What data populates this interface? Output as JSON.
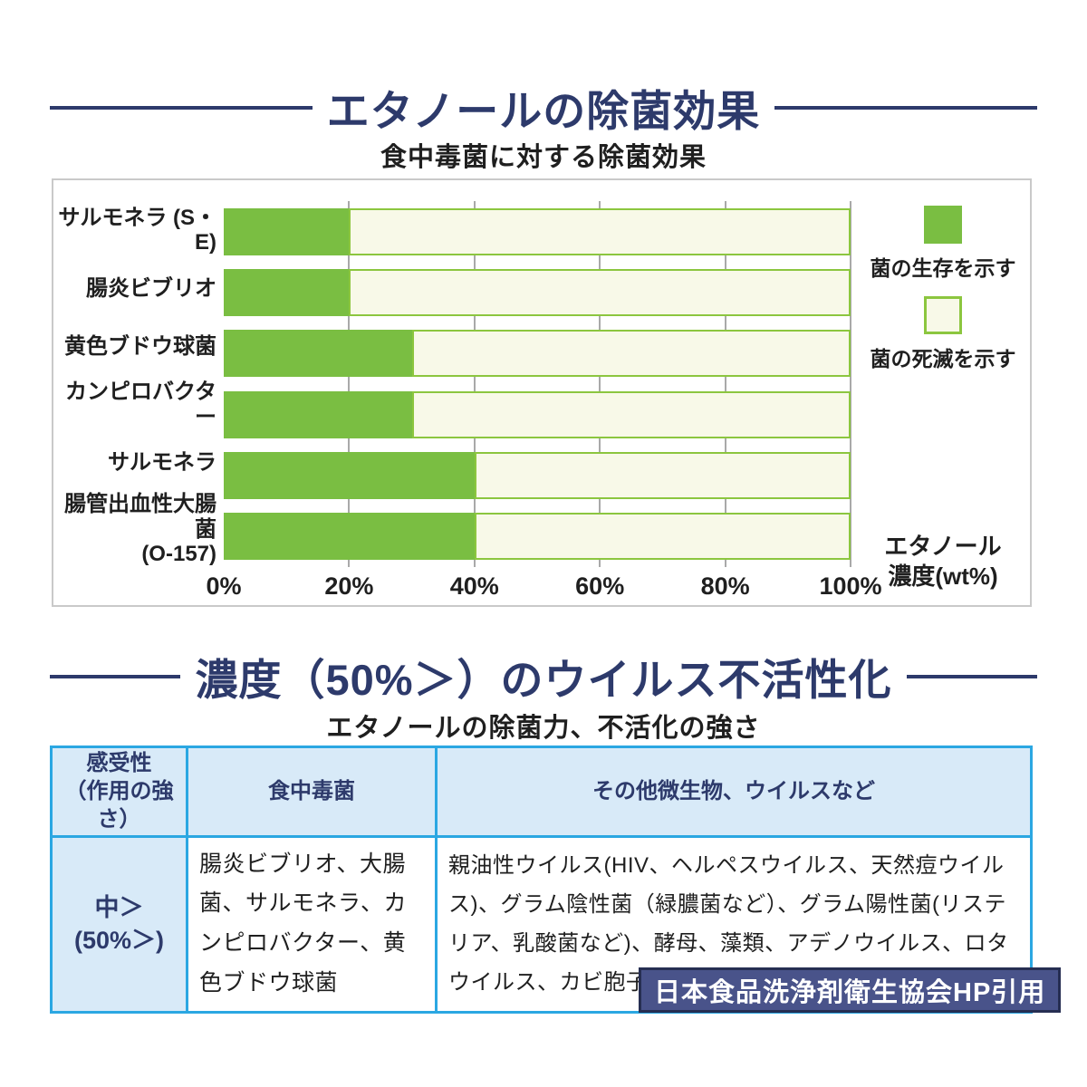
{
  "page": {
    "title1": "エタノールの除菌効果",
    "subtitle1": "食中毒菌に対する除菌効果",
    "title2": "濃度（50%＞）のウイルス不活性化",
    "subtitle2": "エタノールの除菌力、不活化の強さ",
    "source": "日本食品洗浄剤衛生協会HP引用"
  },
  "chart_data": {
    "type": "bar",
    "title": "食中毒菌に対する除菌効果",
    "orientation": "horizontal",
    "categories": [
      "サルモネラ (S・E)",
      "腸炎ビブリオ",
      "黄色ブドウ球菌",
      "カンピロバクター",
      "サルモネラ",
      "腸管出血性大腸菌\n(O-157)"
    ],
    "values": [
      20,
      20,
      30,
      30,
      40,
      40
    ],
    "series": [
      {
        "name": "菌の生存を示す",
        "meaning": "green segment from 0% up to value",
        "values": [
          20,
          20,
          30,
          30,
          40,
          40
        ]
      },
      {
        "name": "菌の死滅を示す",
        "meaning": "cream segment from value up to 100%",
        "values": [
          80,
          80,
          70,
          70,
          60,
          60
        ]
      }
    ],
    "xlim": [
      0,
      100
    ],
    "xticks": [
      "0%",
      "20%",
      "40%",
      "60%",
      "80%",
      "100%"
    ],
    "xtick_values": [
      0,
      20,
      40,
      60,
      80,
      100
    ],
    "xlabel": "エタノール濃度(wt%)",
    "axis_unit_lines": [
      "エタノール",
      "濃度(wt%)"
    ],
    "grid": "vertical gridlines at each 20%",
    "legend_position": "right",
    "legend": [
      {
        "label": "菌の生存を示す",
        "swatch": "filled",
        "color": "#7abe42"
      },
      {
        "label": "菌の死滅を示す",
        "swatch": "outlined",
        "color": "#f8f9e8",
        "border": "#8cc63f"
      }
    ]
  },
  "table": {
    "headers": [
      "感受性\n（作用の強さ）",
      "食中毒菌",
      "その他微生物、ウイルスなど"
    ],
    "rows": [
      {
        "sensitivity": "中＞\n(50%＞)",
        "foodborne": "腸炎ビブリオ、大腸菌、サルモネラ、カンピロバクター、黄色ブドウ球菌",
        "others": "親油性ウイルス(HIV、ヘルペスウイルス、天然痘ウイルス)、グラム陰性菌（緑膿菌など）、グラム陽性菌(リステリア、乳酸菌など)、酵母、藻類、アデノウイルス、ロタウイルス、カビ胞子"
      }
    ]
  },
  "colors": {
    "navy": "#2d3a6b",
    "bar_green": "#7abe42",
    "bar_cream": "#f8f9e8",
    "bar_cream_border": "#8cc63f",
    "gridline": "#a9a9a9",
    "panel_border": "#c9c9c9",
    "table_border": "#2ba7e2",
    "table_header_bg": "#d8eaf8",
    "badge_bg": "#49538a",
    "badge_border": "#262e52"
  }
}
